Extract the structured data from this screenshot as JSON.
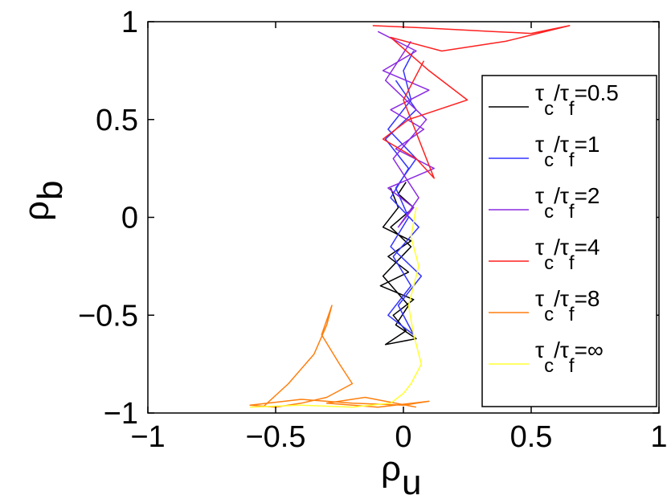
{
  "chart_data": {
    "type": "line",
    "xlim": [
      -1,
      1
    ],
    "ylim": [
      -1,
      1
    ],
    "grid": false,
    "legend_placement": "right",
    "x_ticks": [
      "−1",
      "−0.5",
      "0",
      "0.5",
      "1"
    ],
    "y_ticks": [
      "−1",
      "−0.5",
      "0",
      "0.5",
      "1"
    ],
    "x_tick_values": [
      -1,
      -0.5,
      0,
      0.5,
      1
    ],
    "y_tick_values": [
      -1,
      -0.5,
      0,
      0.5,
      1
    ],
    "xlabel": {
      "base": "ρ",
      "sub": "u"
    },
    "ylabel": {
      "base": "ρ",
      "sub": "b"
    },
    "series": [
      {
        "name": "τc/τf=0.5",
        "label_parts": {
          "tau": "τ",
          "sub1": "c",
          "slash": "/",
          "sub2": "f",
          "value": "=0.5"
        },
        "color": "#000000",
        "x": [
          -0.05,
          -0.02,
          -0.08,
          0.03,
          -0.06,
          0.02,
          -0.09,
          0.04,
          -0.04,
          0.01,
          -0.07,
          0.05,
          -0.03,
          0.02,
          -0.08,
          0.03,
          -0.05,
          0.04,
          -0.02,
          0.01
        ],
        "y": [
          0.15,
          0.05,
          -0.05,
          -0.12,
          -0.2,
          -0.28,
          -0.35,
          -0.42,
          -0.5,
          -0.58,
          -0.65,
          -0.62,
          -0.55,
          -0.45,
          -0.3,
          -0.15,
          -0.05,
          0.05,
          0.12,
          0.18
        ]
      },
      {
        "name": "τc/τf=1",
        "label_parts": {
          "tau": "τ",
          "sub1": "c",
          "slash": "/",
          "sub2": "f",
          "value": "=1"
        },
        "color": "#3333ff",
        "x": [
          -0.03,
          0.05,
          -0.07,
          0.02,
          -0.05,
          0.06,
          -0.04,
          0.03,
          -0.06,
          0.04,
          -0.02,
          0.07,
          -0.05,
          0.02,
          -0.03,
          0.05,
          -0.06,
          0.03,
          0.0,
          0.04
        ],
        "y": [
          0.7,
          0.55,
          0.4,
          0.25,
          0.1,
          -0.05,
          -0.2,
          -0.35,
          -0.5,
          -0.6,
          -0.45,
          -0.3,
          -0.15,
          0.0,
          0.15,
          0.3,
          0.45,
          0.6,
          0.75,
          0.85
        ]
      },
      {
        "name": "τc/τf=2",
        "label_parts": {
          "tau": "τ",
          "sub1": "c",
          "slash": "/",
          "sub2": "f",
          "value": "=2"
        },
        "color": "#8a2be2",
        "x": [
          -0.1,
          0.05,
          -0.08,
          0.1,
          -0.05,
          0.08,
          -0.03,
          0.12,
          -0.06,
          0.04,
          -0.02,
          0.06,
          -0.04,
          0.09,
          -0.07,
          0.03
        ],
        "y": [
          0.95,
          0.85,
          0.75,
          0.65,
          0.55,
          0.45,
          0.35,
          0.25,
          0.15,
          0.05,
          -0.05,
          0.1,
          0.3,
          0.5,
          0.7,
          0.9
        ]
      },
      {
        "name": "τc/τf=4",
        "label_parts": {
          "tau": "τ",
          "sub1": "c",
          "slash": "/",
          "sub2": "f",
          "value": "=4"
        },
        "color": "#ff2020",
        "x": [
          -0.12,
          0.05,
          0.2,
          0.35,
          0.5,
          0.65,
          0.4,
          0.15,
          -0.05,
          0.1,
          0.25,
          0.02,
          -0.08,
          0.05,
          0.12,
          0.0,
          0.08
        ],
        "y": [
          0.98,
          0.97,
          0.96,
          0.95,
          0.94,
          0.98,
          0.9,
          0.85,
          0.92,
          0.75,
          0.6,
          0.5,
          0.4,
          0.3,
          0.2,
          0.6,
          0.8
        ]
      },
      {
        "name": "τc/τf=8",
        "label_parts": {
          "tau": "τ",
          "sub1": "c",
          "slash": "/",
          "sub2": "f",
          "value": "=8"
        },
        "color": "#ff7f0e",
        "x": [
          -0.55,
          -0.45,
          -0.35,
          -0.3,
          -0.28,
          -0.32,
          -0.25,
          -0.2,
          -0.3,
          -0.4,
          -0.5,
          -0.6,
          -0.4,
          -0.2,
          0.0,
          0.1,
          -0.1,
          -0.3,
          -0.15,
          0.05
        ],
        "y": [
          -0.97,
          -0.85,
          -0.7,
          -0.55,
          -0.45,
          -0.6,
          -0.75,
          -0.85,
          -0.92,
          -0.95,
          -0.97,
          -0.96,
          -0.93,
          -0.95,
          -0.96,
          -0.94,
          -0.97,
          -0.95,
          -0.92,
          -0.97
        ]
      },
      {
        "name": "τc/τf=∞",
        "label_parts": {
          "tau": "τ",
          "sub1": "c",
          "slash": "/",
          "sub2": "f",
          "value": "=∞"
        },
        "color": "#ffff33",
        "x": [
          0.05,
          0.03,
          0.06,
          0.02,
          0.04,
          0.07,
          0.03,
          0.0,
          -0.05,
          -0.2,
          -0.4,
          -0.6
        ],
        "y": [
          0.05,
          -0.1,
          -0.25,
          -0.45,
          -0.6,
          -0.75,
          -0.85,
          -0.9,
          -0.95,
          -0.97,
          -0.96,
          -0.97
        ]
      }
    ]
  }
}
